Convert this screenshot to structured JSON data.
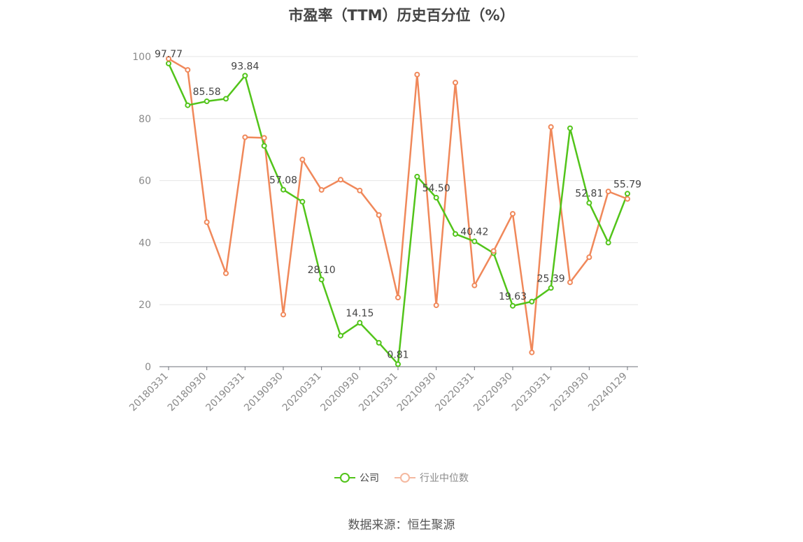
{
  "chart_data": {
    "type": "line",
    "title": "市盈率（TTM）历史百分位（%）",
    "xlabel": "",
    "ylabel": "",
    "ylim": [
      0,
      100
    ],
    "yticks": [
      0,
      20,
      40,
      60,
      80,
      100
    ],
    "grid": true,
    "legend_position": "bottom",
    "x_tick_labels": [
      "20180331",
      "20180930",
      "20190331",
      "20190930",
      "20200331",
      "20200930",
      "20210331",
      "20210930",
      "20220331",
      "20220930",
      "20230331",
      "20230930",
      "20240129"
    ],
    "categories": [
      "20180331",
      "20180630",
      "20180930",
      "20181231",
      "20190331",
      "20190630",
      "20190930",
      "20191231",
      "20200331",
      "20200630",
      "20200930",
      "20201231",
      "20210331",
      "20210630",
      "20210930",
      "20211231",
      "20220331",
      "20220630",
      "20220930",
      "20221231",
      "20230331",
      "20230630",
      "20230930",
      "20231231",
      "20240129"
    ],
    "series": [
      {
        "name": "公司",
        "color": "#52c41a",
        "values": [
          97.77,
          84.3,
          85.58,
          86.4,
          93.84,
          71.2,
          57.08,
          53.2,
          28.1,
          10.0,
          14.15,
          7.7,
          0.81,
          61.3,
          54.5,
          42.8,
          40.42,
          36.6,
          19.63,
          21.0,
          25.39,
          76.9,
          52.81,
          40.0,
          55.79
        ],
        "labeled_indices": [
          0,
          2,
          4,
          6,
          8,
          10,
          12,
          14,
          16,
          18,
          20,
          22,
          24
        ]
      },
      {
        "name": "行业中位数",
        "color": "#f0885a",
        "values": [
          99.3,
          95.7,
          46.6,
          30.1,
          74.0,
          73.8,
          16.8,
          66.8,
          57.0,
          60.3,
          56.8,
          48.9,
          22.3,
          94.2,
          19.8,
          91.6,
          26.2,
          37.3,
          49.3,
          4.6,
          77.3,
          27.2,
          35.3,
          56.5,
          54.1
        ]
      }
    ]
  },
  "source": "数据来源：恒生聚源"
}
